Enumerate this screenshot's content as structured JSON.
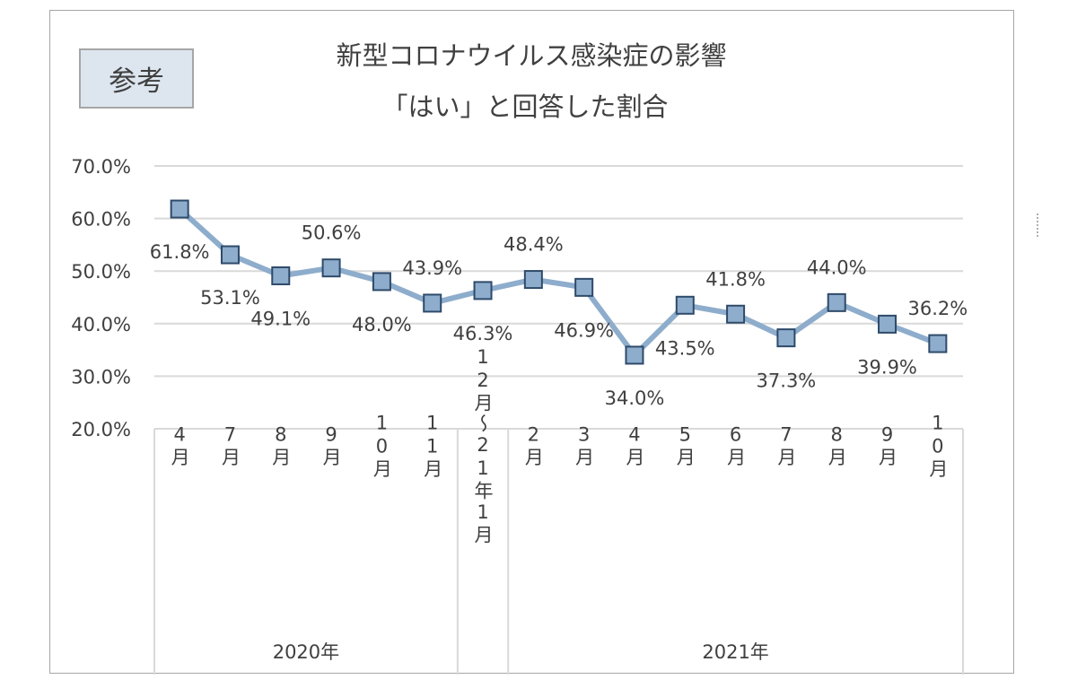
{
  "badge_label": "参考",
  "chart_data": {
    "type": "line",
    "title": "新型コロナウイルス感染症の影響",
    "subtitle": "「はい」と回答した割合",
    "categories": [
      "4月",
      "7月",
      "8月",
      "9月",
      "10月",
      "11月",
      "12月〜21年1月",
      "2月",
      "3月",
      "4月",
      "5月",
      "6月",
      "7月",
      "8月",
      "9月",
      "10月"
    ],
    "groups": [
      {
        "label": "2020年",
        "count": 6
      },
      {
        "label": "",
        "count": 1
      },
      {
        "label": "2021年",
        "count": 9
      }
    ],
    "series": [
      {
        "values": [
          61.8,
          53.1,
          49.1,
          50.6,
          48.0,
          43.9,
          46.3,
          48.4,
          46.9,
          34.0,
          43.5,
          41.8,
          37.3,
          44.0,
          39.9,
          36.2
        ]
      }
    ],
    "data_labels": [
      "61.8%",
      "53.1%",
      "49.1%",
      "50.6%",
      "48.0%",
      "43.9%",
      "46.3%",
      "48.4%",
      "46.9%",
      "34.0%",
      "43.5%",
      "41.8%",
      "37.3%",
      "44.0%",
      "39.9%",
      "36.2%"
    ],
    "label_side": [
      "below",
      "below",
      "below",
      "above",
      "below",
      "above",
      "below",
      "above",
      "below",
      "below",
      "below",
      "above",
      "below",
      "above",
      "below",
      "above"
    ],
    "ylim": [
      20,
      70
    ],
    "yticks": [
      "20.0%",
      "30.0%",
      "40.0%",
      "50.0%",
      "60.0%",
      "70.0%"
    ],
    "grid": true,
    "colors": {
      "line": "#8eadcc",
      "marker_fill": "#8eadcc",
      "marker_border": "#2e4a6a",
      "grid": "#d9d9d9"
    }
  }
}
